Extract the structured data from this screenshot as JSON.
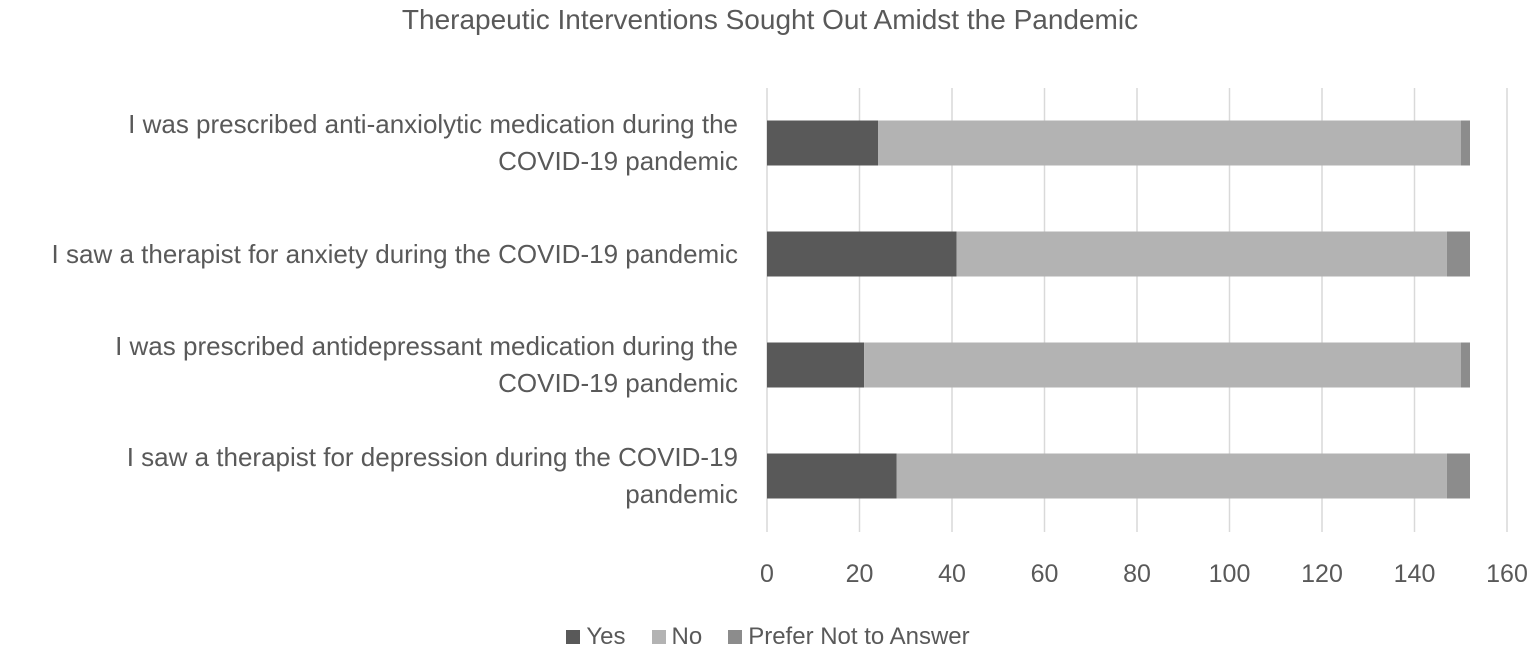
{
  "chart_data": {
    "type": "bar",
    "orientation": "horizontal",
    "stacked": true,
    "title": "Therapeutic Interventions Sought Out Amidst the Pandemic",
    "categories": [
      [
        "I was prescribed anti-anxiolytic medication during the",
        "COVID-19 pandemic"
      ],
      [
        "I saw a therapist for anxiety during the COVID-19 pandemic"
      ],
      [
        "I was prescribed antidepressant medication during the",
        "COVID-19 pandemic"
      ],
      [
        "I saw a therapist for depression during the COVID-19",
        "pandemic"
      ]
    ],
    "series": [
      {
        "name": "Yes",
        "color": "#595959",
        "values": [
          24,
          41,
          21,
          28
        ]
      },
      {
        "name": "No",
        "color": "#b3b3b3",
        "values": [
          126,
          106,
          129,
          119
        ]
      },
      {
        "name": "Prefer Not to Answer",
        "color": "#8c8c8c",
        "values": [
          2,
          5,
          2,
          5
        ]
      }
    ],
    "xlim": [
      0,
      160
    ],
    "xticks": [
      "0",
      "20",
      "40",
      "60",
      "80",
      "100",
      "120",
      "140",
      "160"
    ],
    "grid": true,
    "legend_position": "bottom"
  }
}
